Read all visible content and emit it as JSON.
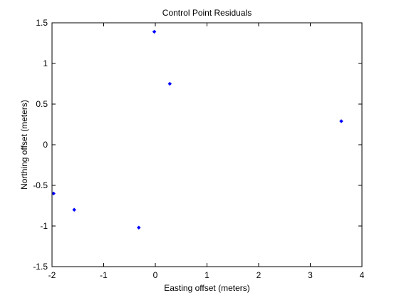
{
  "chart_data": {
    "type": "scatter",
    "title": "Control Point Residuals",
    "xlabel": "Easting offset (meters)",
    "ylabel": "Northing offset (meters)",
    "xlim": [
      -2,
      4
    ],
    "ylim": [
      -1.5,
      1.5
    ],
    "xticks": [
      -2,
      -1,
      0,
      1,
      2,
      3,
      4
    ],
    "yticks": [
      -1.5,
      -1,
      -0.5,
      0,
      0.5,
      1,
      1.5
    ],
    "xtick_labels": [
      "-2",
      "-1",
      "0",
      "1",
      "2",
      "3",
      "4"
    ],
    "ytick_labels": [
      "-1.5",
      "-1",
      "-0.5",
      "0",
      "0.5",
      "1",
      "1.5"
    ],
    "grid": false,
    "marker_color": "#0000ff",
    "points": [
      {
        "x": -1.97,
        "y": -0.6
      },
      {
        "x": -1.57,
        "y": -0.8
      },
      {
        "x": -0.32,
        "y": -1.02
      },
      {
        "x": -0.02,
        "y": 1.39
      },
      {
        "x": 0.28,
        "y": 0.75
      },
      {
        "x": 3.6,
        "y": 0.29
      }
    ]
  }
}
